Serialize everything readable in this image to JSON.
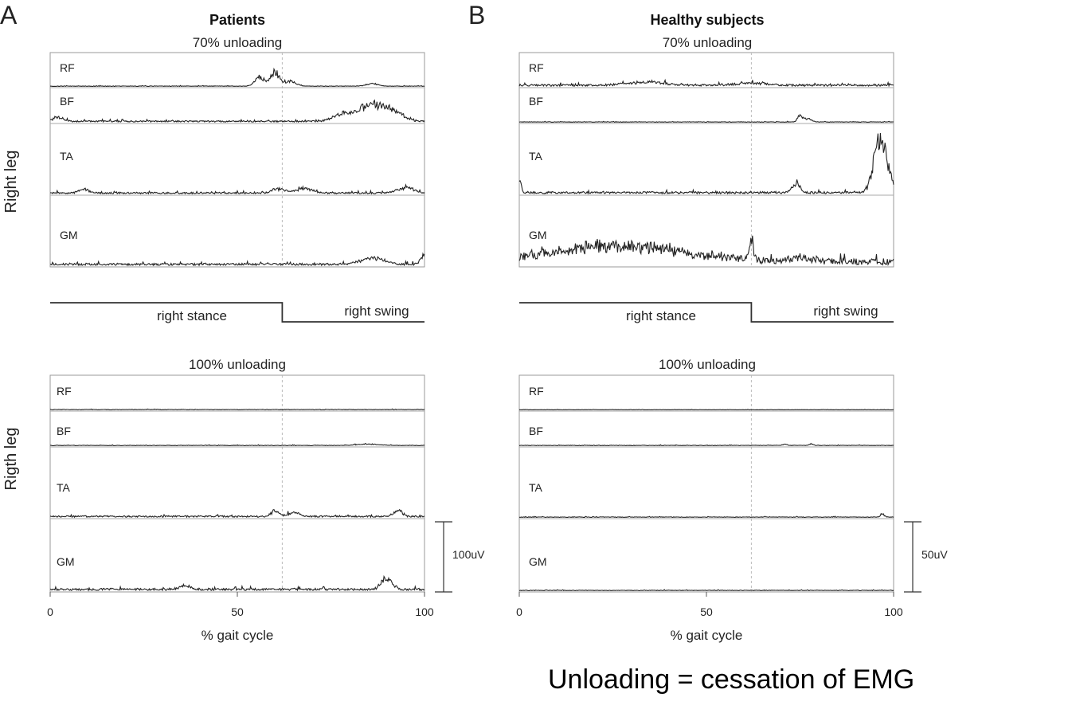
{
  "figure": {
    "caption": "Unloading = cessation of EMG"
  },
  "panels": [
    {
      "letter": "A",
      "title": "Patients",
      "scale_label": "100uV",
      "sections": [
        {
          "label": "70% unloading",
          "leg_label": "Right leg"
        },
        {
          "label": "100% unloading",
          "leg_label": "Rigth leg"
        }
      ],
      "phase": {
        "stance_label": "right stance",
        "swing_label": "right swing",
        "toe_off_percent": 62
      },
      "xaxis": {
        "label": "% gait cycle",
        "ticks": [
          "0",
          "50",
          "100"
        ]
      }
    },
    {
      "letter": "B",
      "title": "Healthy subjects",
      "scale_label": "50uV",
      "sections": [
        {
          "label": "70% unloading",
          "leg_label": ""
        },
        {
          "label": "100% unloading",
          "leg_label": ""
        }
      ],
      "phase": {
        "stance_label": "right stance",
        "swing_label": "right swing",
        "toe_off_percent": 62
      },
      "xaxis": {
        "label": "% gait cycle",
        "ticks": [
          "0",
          "50",
          "100"
        ]
      }
    }
  ],
  "chart_data": [
    {
      "type": "line",
      "title": "Patients",
      "xlabel": "% gait cycle",
      "xlim": [
        0,
        100
      ],
      "toe_off_percent": 62,
      "scale_bar": "100uV",
      "series": [
        {
          "section": "70% unloading",
          "name": "RF",
          "noise": 0.02,
          "peaks": [
            [
              56,
              0.35,
              1.2
            ],
            [
              60,
              0.55,
              1.2
            ],
            [
              64,
              0.2,
              1.5
            ],
            [
              86,
              0.1,
              1.5
            ]
          ]
        },
        {
          "section": "70% unloading",
          "name": "BF",
          "noise": 0.06,
          "peaks": [
            [
              2,
              0.15,
              1.5
            ],
            [
              78,
              0.25,
              2.5
            ],
            [
              86,
              0.65,
              3.5
            ],
            [
              92,
              0.3,
              2.5
            ]
          ]
        },
        {
          "section": "70% unloading",
          "name": "TA",
          "noise": 0.03,
          "peaks": [
            [
              9,
              0.07,
              1.2
            ],
            [
              61,
              0.08,
              1.5
            ],
            [
              68,
              0.09,
              2
            ],
            [
              95,
              0.1,
              2
            ]
          ]
        },
        {
          "section": "70% unloading",
          "name": "GM",
          "noise": 0.04,
          "peaks": [
            [
              86,
              0.12,
              3
            ],
            [
              100,
              0.15,
              1
            ]
          ]
        },
        {
          "section": "100% unloading",
          "name": "RF",
          "noise": 0.02,
          "peaks": []
        },
        {
          "section": "100% unloading",
          "name": "BF",
          "noise": 0.02,
          "peaks": [
            [
              85,
              0.05,
              3
            ]
          ]
        },
        {
          "section": "100% unloading",
          "name": "TA",
          "noise": 0.03,
          "peaks": [
            [
              60,
              0.1,
              1
            ],
            [
              65,
              0.07,
              1.5
            ],
            [
              93,
              0.12,
              1
            ]
          ]
        },
        {
          "section": "100% unloading",
          "name": "GM",
          "noise": 0.04,
          "peaks": [
            [
              36,
              0.06,
              1.5
            ],
            [
              89,
              0.15,
              1
            ],
            [
              91,
              0.12,
              1
            ]
          ]
        }
      ]
    },
    {
      "type": "line",
      "title": "Healthy subjects",
      "xlabel": "% gait cycle",
      "xlim": [
        0,
        100
      ],
      "toe_off_percent": 62,
      "scale_bar": "50uV",
      "series": [
        {
          "section": "70% unloading",
          "name": "RF",
          "noise": 0.08,
          "peaks": [
            [
              34,
              0.12,
              5
            ],
            [
              62,
              0.08,
              4
            ]
          ]
        },
        {
          "section": "70% unloading",
          "name": "BF",
          "noise": 0.02,
          "peaks": [
            [
              75,
              0.25,
              0.6
            ],
            [
              77,
              0.12,
              1
            ]
          ]
        },
        {
          "section": "70% unloading",
          "name": "TA",
          "noise": 0.04,
          "peaks": [
            [
              74,
              0.18,
              1
            ],
            [
              96,
              0.75,
              1.5
            ],
            [
              98,
              0.4,
              1.5
            ],
            [
              0,
              0.2,
              0.5
            ]
          ]
        },
        {
          "section": "70% unloading",
          "name": "GM",
          "noise": 0.12,
          "peaks": [
            [
              26,
              0.28,
              18
            ],
            [
              62,
              0.32,
              0.6
            ],
            [
              75,
              0.05,
              3
            ]
          ]
        },
        {
          "section": "100% unloading",
          "name": "RF",
          "noise": 0.01,
          "peaks": []
        },
        {
          "section": "100% unloading",
          "name": "BF",
          "noise": 0.02,
          "peaks": [
            [
              71,
              0.05,
              0.5
            ],
            [
              78,
              0.06,
              0.5
            ]
          ]
        },
        {
          "section": "100% unloading",
          "name": "TA",
          "noise": 0.01,
          "peaks": [
            [
              97,
              0.06,
              0.5
            ]
          ]
        },
        {
          "section": "100% unloading",
          "name": "GM",
          "noise": 0.01,
          "peaks": []
        }
      ]
    }
  ]
}
